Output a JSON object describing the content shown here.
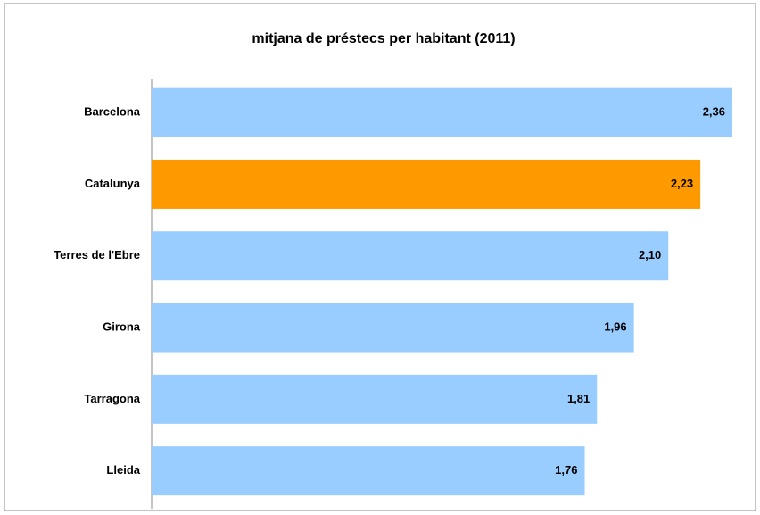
{
  "chart_data": {
    "type": "barh",
    "title": "mitjana de préstecs per habitant (2011)",
    "categories": [
      "Barcelona",
      "Catalunya",
      "Terres de l'Ebre",
      "Girona",
      "Tarragona",
      "Lleida"
    ],
    "values": [
      2.36,
      2.23,
      2.1,
      1.96,
      1.81,
      1.76
    ],
    "value_labels": [
      "2,36",
      "2,23",
      "2,10",
      "1,96",
      "1,81",
      "1,76"
    ],
    "colors": [
      "#99ccff",
      "#ff9900",
      "#99ccff",
      "#99ccff",
      "#99ccff",
      "#99ccff"
    ]
  }
}
